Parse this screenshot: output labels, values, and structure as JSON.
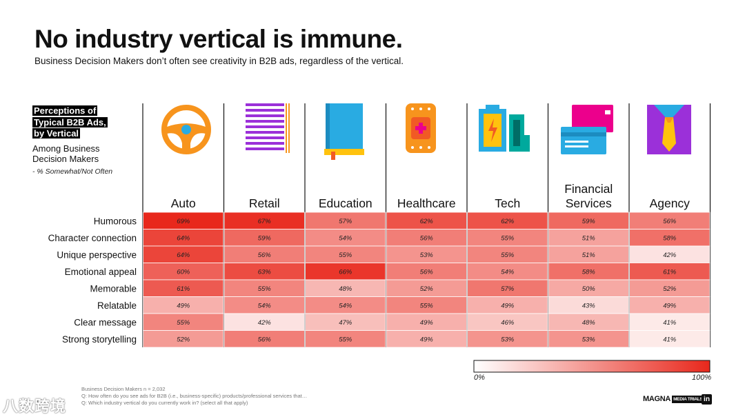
{
  "header": {
    "title": "No industry vertical is immune.",
    "subtitle": "Business Decision Makers don’t often see creativity in B2B ads, regardless of the vertical."
  },
  "legend_block": {
    "heading": "Perceptions of Typical B2B Ads, by Vertical",
    "among": "Among Business Decision Makers",
    "note": "- % Somewhat/Not Often"
  },
  "scale": {
    "min_label": "0%",
    "max_label": "100%",
    "low_color": "#ffffff",
    "high_color": "#e8281c"
  },
  "footer": {
    "footnote_line1": "Business Decision Makers n = 2,032",
    "footnote_line2": "Q: How often do you see ads for B2B (i.e., business-specific) products/professional services that…",
    "footnote_line3": "Q: Which industry vertical do you currently work in? (select all that apply)",
    "page_number": "10",
    "brand": "MAGNA",
    "brand_badge": "MEDIA TRIALS",
    "linkedin": "in",
    "watermark": "八数跨境"
  },
  "chart_data": {
    "type": "heatmap",
    "title": "Perceptions of Typical B2B Ads, by Vertical",
    "columns": [
      "Auto",
      "Retail",
      "Education",
      "Healthcare",
      "Tech",
      "Financial Services",
      "Agency"
    ],
    "column_icons": [
      "steering-wheel-icon",
      "barcode-icon",
      "book-icon",
      "bandage-icon",
      "battery-icon",
      "credit-card-icon",
      "shirt-tie-icon"
    ],
    "rows": [
      "Humorous",
      "Character connection",
      "Unique perspective",
      "Emotional appeal",
      "Memorable",
      "Relatable",
      "Clear message",
      "Strong storytelling"
    ],
    "values": [
      [
        69,
        67,
        57,
        62,
        62,
        59,
        56
      ],
      [
        64,
        59,
        54,
        56,
        55,
        51,
        58
      ],
      [
        64,
        56,
        55,
        53,
        55,
        51,
        42
      ],
      [
        60,
        63,
        66,
        56,
        54,
        58,
        61
      ],
      [
        61,
        55,
        48,
        52,
        57,
        50,
        52
      ],
      [
        49,
        54,
        54,
        55,
        49,
        43,
        49
      ],
      [
        55,
        42,
        47,
        49,
        46,
        48,
        41
      ],
      [
        52,
        56,
        55,
        49,
        53,
        53,
        41
      ]
    ],
    "value_suffix": "%",
    "color_scale": [
      0,
      100
    ]
  }
}
